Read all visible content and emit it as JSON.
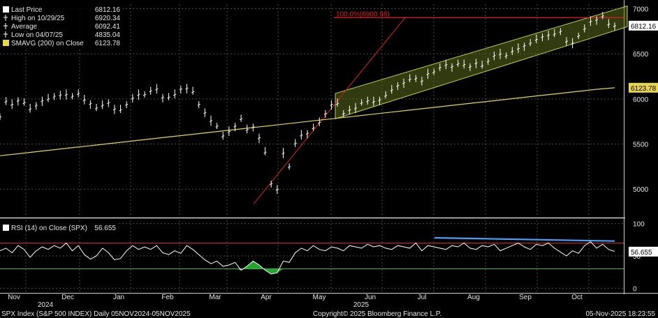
{
  "chart_data": [
    {
      "type": "line",
      "panel": "price",
      "legend": [
        {
          "label": "Last Price",
          "value": "6812.16",
          "color": "#ffffff",
          "marker": "box"
        },
        {
          "label": "High on 10/29/25",
          "value": "6920.34",
          "color": "#ffffff",
          "marker": "high"
        },
        {
          "label": "Average",
          "value": "6092.41",
          "color": "#ffffff",
          "marker": "avg"
        },
        {
          "label": "Low on 04/07/25",
          "value": "4835.04",
          "color": "#ffffff",
          "marker": "low"
        },
        {
          "label": "SMAVG (200)  on Close",
          "value": "6123.78",
          "color": "#e8d44d",
          "marker": "box"
        }
      ],
      "ylim": [
        4700,
        7050
      ],
      "yticks": [
        "7000",
        "6500",
        "6000",
        "5500",
        "5000"
      ],
      "ytick_values": [
        7000,
        6500,
        6000,
        5500,
        5000
      ],
      "last_tag": "6812.16",
      "sma_tag": "6123.78",
      "fib_label": "100.0%(6900.98)",
      "fib_value": 6900.98,
      "series": [
        {
          "name": "Last Price",
          "color": "#ffffff",
          "values": [
            5800,
            5975,
            5940,
            5985,
            5960,
            5890,
            5930,
            5980,
            6000,
            6030,
            6045,
            6050,
            6030,
            6060,
            5990,
            5950,
            5900,
            5930,
            5960,
            5890,
            5880,
            5940,
            6010,
            6050,
            6050,
            6090,
            6110,
            6020,
            6020,
            6050,
            6110,
            6120,
            6080,
            5940,
            5850,
            5760,
            5700,
            5590,
            5640,
            5700,
            5780,
            5660,
            5690,
            5570,
            5410,
            5060,
            5000,
            5400,
            5250,
            5510,
            5600,
            5620,
            5680,
            5740,
            5840,
            5940,
            5950,
            5840,
            5880,
            5900,
            5960,
            5980,
            5970,
            5990,
            6040,
            6100,
            6150,
            6180,
            6220,
            6230,
            6200,
            6280,
            6300,
            6350,
            6380,
            6360,
            6390,
            6380,
            6360,
            6400,
            6370,
            6420,
            6480,
            6500,
            6480,
            6530,
            6560,
            6590,
            6620,
            6660,
            6690,
            6710,
            6720,
            6750,
            6640,
            6620,
            6700,
            6780,
            6860,
            6880,
            6920,
            6830,
            6812
          ]
        },
        {
          "name": "SMAVG (200)",
          "color": "#e8d44d",
          "values": [
            5370,
            5393,
            5416,
            5439,
            5462,
            5485,
            5508,
            5531,
            5554,
            5577,
            5600,
            5623,
            5646,
            5669,
            5692,
            5715,
            5738,
            5761,
            5784,
            5807,
            5830,
            5853,
            5876,
            5899,
            5922,
            5945,
            5968,
            5991,
            6014,
            6037,
            6060,
            6083,
            6106,
            6123
          ]
        }
      ]
    },
    {
      "type": "line",
      "panel": "rsi",
      "legend": [
        {
          "label": "RSI (14)  on Close (SPX)",
          "value": "56.655",
          "color": "#ffffff",
          "marker": "box"
        }
      ],
      "ylim": [
        -5,
        105
      ],
      "yticks": [
        "100",
        "50",
        "0"
      ],
      "ytick_values": [
        100,
        50,
        0
      ],
      "overbought": 70,
      "oversold": 30,
      "last_tag": "56.655",
      "series": [
        {
          "name": "RSI (14)",
          "color": "#ffffff",
          "values": [
            58,
            62,
            55,
            66,
            60,
            48,
            58,
            64,
            60,
            66,
            62,
            70,
            58,
            66,
            52,
            45,
            50,
            62,
            55,
            44,
            46,
            58,
            66,
            60,
            64,
            60,
            66,
            55,
            52,
            58,
            54,
            66,
            60,
            52,
            44,
            38,
            42,
            34,
            36,
            40,
            28,
            34,
            42,
            36,
            28,
            22,
            24,
            42,
            40,
            55,
            62,
            58,
            66,
            60,
            58,
            64,
            62,
            58,
            66,
            64,
            62,
            68,
            64,
            66,
            62,
            60,
            66,
            64,
            62,
            70,
            58,
            66,
            64,
            62,
            60,
            66,
            64,
            70,
            62,
            60,
            66,
            64,
            68,
            58,
            62,
            66,
            70,
            64,
            60,
            68,
            66,
            70,
            62,
            56,
            50,
            58,
            54,
            66,
            72,
            62,
            68,
            60,
            57
          ]
        }
      ]
    }
  ],
  "xaxis": {
    "months": [
      "Nov",
      "Dec",
      "Jan",
      "Feb",
      "Mar",
      "Apr",
      "May",
      "Jun",
      "Jul",
      "Aug",
      "Sep",
      "Oct"
    ],
    "years": [
      "2024",
      "2025"
    ]
  },
  "footer": {
    "left": "SPX Index (S&P 500 INDEX) Daily 05NOV2024-05NOV2025",
    "center": "Copyright© 2025 Bloomberg Finance L.P.",
    "right": "05-Nov-2025 18:23:55"
  },
  "colors": {
    "background": "#000000",
    "grid": "#4a4a4a",
    "price": "#ffffff",
    "sma": "#e8d44d",
    "fib": "#e02020",
    "channel_fill": "#5a6b1c",
    "channel_edge": "#c2d04a",
    "rsi_upper": "#e02020",
    "rsi_lower": "#2fbf3a",
    "rsi_trend": "#4aa0ff",
    "oversold_fill": "#2fbf3a"
  }
}
